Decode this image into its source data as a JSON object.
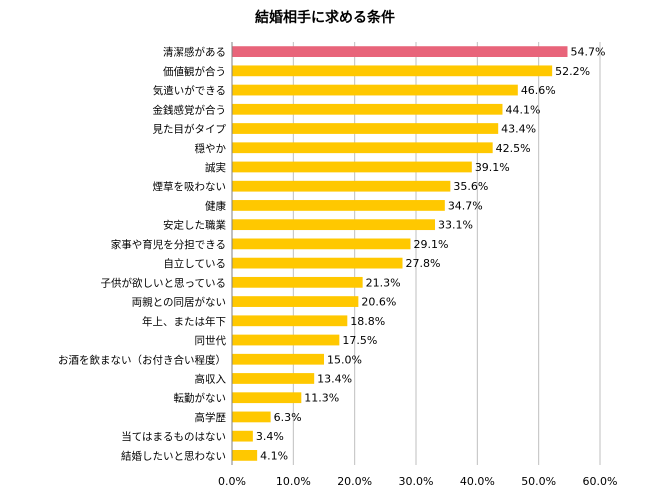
{
  "chart_data": {
    "type": "bar",
    "orientation": "horizontal",
    "title": "結婚相手に求める条件",
    "categories": [
      "清潔感がある",
      "価値観が合う",
      "気遣いができる",
      "金銭感覚が合う",
      "見た目がタイプ",
      "穏やか",
      "誠実",
      "煙草を吸わない",
      "健康",
      "安定した職業",
      "家事や育児を分担できる",
      "自立している",
      "子供が欲しいと思っている",
      "両親との同居がない",
      "年上、または年下",
      "同世代",
      "お酒を飲まない（お付き合い程度）",
      "高収入",
      "転勤がない",
      "高学歴",
      "当てはまるものはない",
      "結婚したいと思わない"
    ],
    "values": [
      54.7,
      52.2,
      46.6,
      44.1,
      43.4,
      42.5,
      39.1,
      35.6,
      34.7,
      33.1,
      29.1,
      27.8,
      21.3,
      20.6,
      18.8,
      17.5,
      15.0,
      13.4,
      11.3,
      6.3,
      3.4,
      4.1
    ],
    "value_labels": [
      "54.7%",
      "52.2%",
      "46.6%",
      "44.1%",
      "43.4%",
      "42.5%",
      "39.1%",
      "35.6%",
      "34.7%",
      "33.1%",
      "29.1%",
      "27.8%",
      "21.3%",
      "20.6%",
      "18.8%",
      "17.5%",
      "15.0%",
      "13.4%",
      "11.3%",
      "6.3%",
      "3.4%",
      "4.1%"
    ],
    "xlim": [
      0,
      60
    ],
    "x_ticks": [
      "0.0%",
      "10.0%",
      "20.0%",
      "30.0%",
      "40.0%",
      "50.0%",
      "60.0%"
    ],
    "grid": true,
    "legend": "none",
    "colors": {
      "highlight": "#E8647A",
      "bar": "#FFC800",
      "grid": "#BFBFBF",
      "axis": "#808080"
    }
  }
}
